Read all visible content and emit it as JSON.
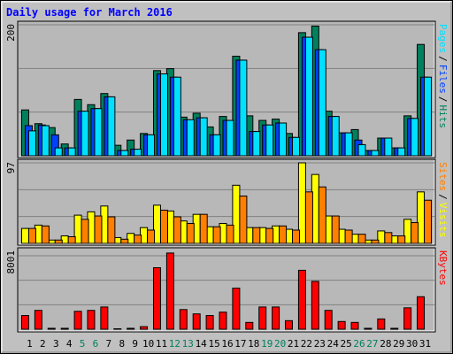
{
  "title": "Daily usage for March 2016",
  "legend_separator": "/",
  "chart_data": [
    {
      "type": "bar",
      "ylim": [
        0,
        200
      ],
      "yticks": [
        200
      ],
      "series": [
        {
          "name": "Hits",
          "color": "#00805c",
          "values": [
            70,
            49,
            43,
            18,
            86,
            78,
            95,
            16,
            24,
            34,
            130,
            133,
            59,
            65,
            44,
            60,
            152,
            61,
            54,
            56,
            34,
            188,
            198,
            68,
            35,
            40,
            8,
            27,
            12,
            61,
            170
          ]
        },
        {
          "name": "Files",
          "color": "#0040ff",
          "values": [
            46,
            47,
            32,
            12,
            68,
            72,
            90,
            8,
            10,
            32,
            125,
            120,
            55,
            58,
            32,
            54,
            146,
            37,
            47,
            50,
            28,
            181,
            162,
            60,
            35,
            24,
            8,
            27,
            12,
            57,
            120
          ]
        },
        {
          "name": "Pages",
          "color": "#00e0ff",
          "values": [
            38,
            46,
            12,
            12,
            68,
            72,
            90,
            8,
            10,
            32,
            125,
            120,
            55,
            58,
            32,
            54,
            146,
            37,
            47,
            50,
            28,
            181,
            162,
            60,
            35,
            17,
            8,
            27,
            12,
            57,
            120
          ]
        }
      ]
    },
    {
      "type": "bar",
      "ylim": [
        0,
        97
      ],
      "yticks": [
        97
      ],
      "series": [
        {
          "name": "Visits",
          "color": "#ffff00",
          "values": [
            18,
            22,
            4,
            9,
            34,
            38,
            45,
            7,
            12,
            19,
            46,
            39,
            27,
            35,
            20,
            24,
            70,
            19,
            19,
            21,
            17,
            97,
            83,
            33,
            17,
            11,
            4,
            15,
            9,
            29,
            62
          ]
        },
        {
          "name": "Sites",
          "color": "#ff8000",
          "values": [
            18,
            21,
            4,
            8,
            29,
            33,
            32,
            5,
            10,
            16,
            40,
            32,
            24,
            35,
            20,
            22,
            57,
            19,
            18,
            21,
            16,
            62,
            68,
            33,
            16,
            11,
            4,
            13,
            9,
            25,
            52
          ]
        }
      ]
    },
    {
      "type": "bar",
      "ylim": [
        0,
        8001
      ],
      "yticks": [
        8001
      ],
      "categories": [
        "1",
        "2",
        "3",
        "4",
        "5",
        "6",
        "7",
        "8",
        "9",
        "10",
        "11",
        "12",
        "13",
        "14",
        "15",
        "16",
        "17",
        "18",
        "19",
        "20",
        "21",
        "22",
        "23",
        "24",
        "25",
        "26",
        "27",
        "28",
        "29",
        "30",
        "31"
      ],
      "category_colors": [
        "#000000",
        "#000000",
        "#000000",
        "#000000",
        "#00805c",
        "#00805c",
        "#000000",
        "#000000",
        "#000000",
        "#000000",
        "#000000",
        "#00805c",
        "#00805c",
        "#000000",
        "#000000",
        "#000000",
        "#000000",
        "#000000",
        "#00805c",
        "#00805c",
        "#000000",
        "#000000",
        "#000000",
        "#000000",
        "#000000",
        "#00805c",
        "#00805c",
        "#000000",
        "#000000",
        "#000000",
        "#000000"
      ],
      "series": [
        {
          "name": "KBytes",
          "color": "#ff0000",
          "values": [
            1490,
            2050,
            100,
            100,
            1950,
            2050,
            2420,
            50,
            100,
            280,
            6700,
            8300,
            2140,
            1670,
            1490,
            1860,
            4470,
            740,
            2420,
            2420,
            930,
            6420,
            5210,
            2050,
            840,
            740,
            100,
            1120,
            100,
            2330,
            3540
          ]
        }
      ]
    }
  ]
}
